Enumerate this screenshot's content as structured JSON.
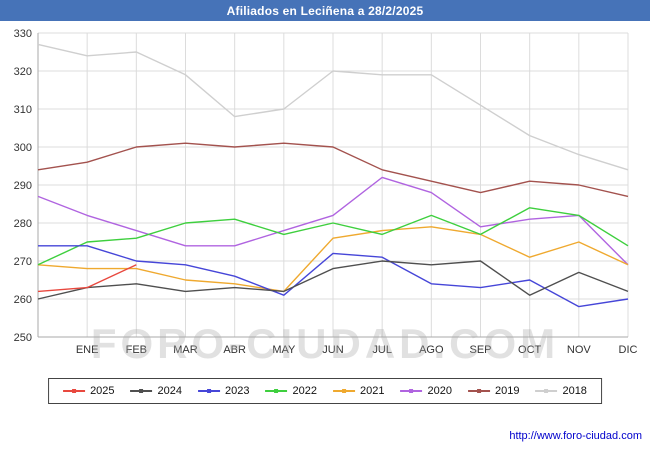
{
  "title": "Afiliados en Leciñena a 28/2/2025",
  "watermark": "FORO-CIUDAD.COM",
  "footer": {
    "url": "http://www.foro-ciudad.com"
  },
  "colors": {
    "title_bar": "#4673b8",
    "grid": "#dcdcdc",
    "axis": "#aaaaaa",
    "axis_text": "#333333",
    "link": "#0000cc"
  },
  "chart_data": {
    "type": "line",
    "title": "Afiliados en Leciñena a 28/2/2025",
    "xlabel": "",
    "ylabel": "",
    "x_tick_labels": [
      "ENE",
      "FEB",
      "MAR",
      "ABR",
      "MAY",
      "JUN",
      "JUL",
      "AGO",
      "SEP",
      "OCT",
      "NOV",
      "DIC"
    ],
    "ylim": [
      250,
      330
    ],
    "y_tick_step": 10,
    "grid": true,
    "legend_position": "bottom",
    "series": [
      {
        "name": "2025",
        "color": "#e8483e",
        "values": [
          262,
          263,
          269
        ]
      },
      {
        "name": "2024",
        "color": "#4f4f4f",
        "values": [
          260,
          263,
          264,
          262,
          263,
          262,
          268,
          270,
          269,
          270,
          261,
          267,
          262
        ]
      },
      {
        "name": "2023",
        "color": "#4646d8",
        "values": [
          274,
          274,
          270,
          269,
          266,
          261,
          272,
          271,
          264,
          263,
          265,
          258,
          260
        ]
      },
      {
        "name": "2022",
        "color": "#3ecf3e",
        "values": [
          269,
          275,
          276,
          280,
          281,
          277,
          280,
          277,
          282,
          277,
          284,
          282,
          274
        ]
      },
      {
        "name": "2021",
        "color": "#efa92f",
        "values": [
          269,
          268,
          268,
          265,
          264,
          262,
          276,
          278,
          279,
          277,
          271,
          275,
          269
        ]
      },
      {
        "name": "2020",
        "color": "#b064e0",
        "values": [
          287,
          282,
          278,
          274,
          274,
          278,
          282,
          292,
          288,
          279,
          281,
          282,
          269
        ]
      },
      {
        "name": "2019",
        "color": "#a3524e",
        "values": [
          294,
          296,
          300,
          301,
          300,
          301,
          300,
          294,
          291,
          288,
          291,
          290,
          287
        ]
      },
      {
        "name": "2018",
        "color": "#cfcfcf",
        "values": [
          327,
          324,
          325,
          319,
          308,
          310,
          320,
          319,
          319,
          311,
          303,
          298,
          294
        ]
      }
    ]
  },
  "legend": {
    "items": [
      "2025",
      "2024",
      "2023",
      "2022",
      "2021",
      "2020",
      "2019",
      "2018"
    ]
  }
}
